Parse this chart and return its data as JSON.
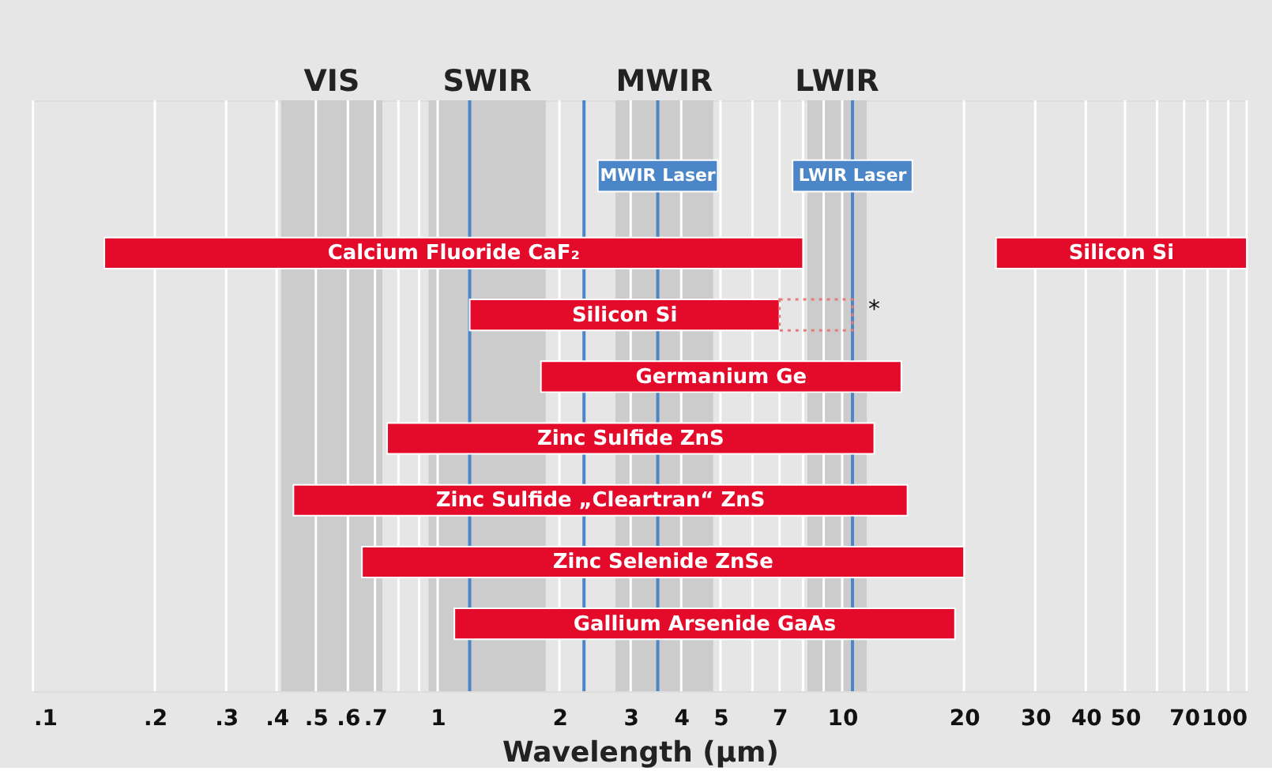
{
  "chart_data": {
    "type": "bar",
    "orientation": "horizontal",
    "xlabel": "Wavelength (µm)",
    "categories": [
      "Calcium Fluoride CaF₂",
      "Silicon Si",
      "Germanium Ge",
      "Zinc Sulfide ZnS",
      "Zinc Sulfide „Cleartran“ ZnS",
      "Zinc Selenide ZnSe",
      "Gallium Arsenide GaAs"
    ],
    "series": [
      {
        "color": "#e30a2a",
        "base": [
          0.15,
          1.2,
          1.8,
          0.75,
          0.44,
          0.65,
          1.1
        ],
        "values": [
          7.85,
          5.8,
          12.2,
          11.25,
          14.06,
          19.35,
          17.9
        ]
      },
      {
        "name": "Silicon Si",
        "color": "#e30a2a",
        "base": [
          24,
          null,
          null,
          null,
          null,
          null,
          null
        ],
        "values": [
          76,
          null,
          null,
          null,
          null,
          null,
          null
        ]
      },
      {
        "color": "#e87a7a",
        "line_style": "dotted",
        "base": [
          null,
          7,
          null,
          null,
          null,
          null,
          null
        ],
        "values": [
          null,
          3.6,
          null,
          null,
          null,
          null,
          null
        ]
      }
    ],
    "xlim": [
      0.1,
      100
    ],
    "xticks": [
      {
        "value": 0.1,
        "label": ".1"
      },
      {
        "value": 0.2,
        "label": ".2"
      },
      {
        "value": 0.3,
        "label": ".3"
      },
      {
        "value": 0.4,
        "label": ".4"
      },
      {
        "value": 0.5,
        "label": ".5"
      },
      {
        "value": 0.6,
        "label": ".6"
      },
      {
        "value": 0.7,
        "label": ".7"
      },
      {
        "value": 0.8,
        "label": null
      },
      {
        "value": 0.9,
        "label": null
      },
      1,
      2,
      3,
      4,
      5,
      {
        "value": 6,
        "label": null
      },
      7,
      {
        "value": 8,
        "label": null
      },
      {
        "value": 9,
        "label": null
      },
      10,
      20,
      30,
      40,
      50,
      {
        "value": 60,
        "label": null
      },
      70,
      {
        "value": 80,
        "label": null
      },
      {
        "value": 90,
        "label": null
      },
      100
    ],
    "grid": "x",
    "tick_labels": "x",
    "log": "x",
    "bands": [
      {
        "axis": "x",
        "from": 0.41,
        "to": 0.73,
        "label": "VIS",
        "color": "#cccccc"
      },
      {
        "axis": "x",
        "from": 0.95,
        "to": 1.85,
        "label": "SWIR",
        "color": "#cccccc"
      },
      {
        "axis": "x",
        "from": 2.75,
        "to": 4.8,
        "label": "MWIR",
        "color": "#cccccc"
      },
      {
        "axis": "x",
        "from": 8.2,
        "to": 11.5,
        "label": "LWIR",
        "color": "#cccccc"
      }
    ],
    "ref_lines": [
      {
        "axis": "x",
        "value": 1.2,
        "color": "#4a86c8"
      },
      {
        "axis": "x",
        "value": 2.3,
        "color": "#4a86c8"
      },
      {
        "axis": "x",
        "value": 3.5,
        "label": "MWIR Laser",
        "color": "#4a86c8"
      },
      {
        "axis": "x",
        "value": 10.6,
        "label": "LWIR Laser",
        "color": "#4a86c8"
      }
    ],
    "annotations": [
      {
        "text": "*",
        "x": 10.6,
        "y": "Silicon Si"
      }
    ]
  }
}
